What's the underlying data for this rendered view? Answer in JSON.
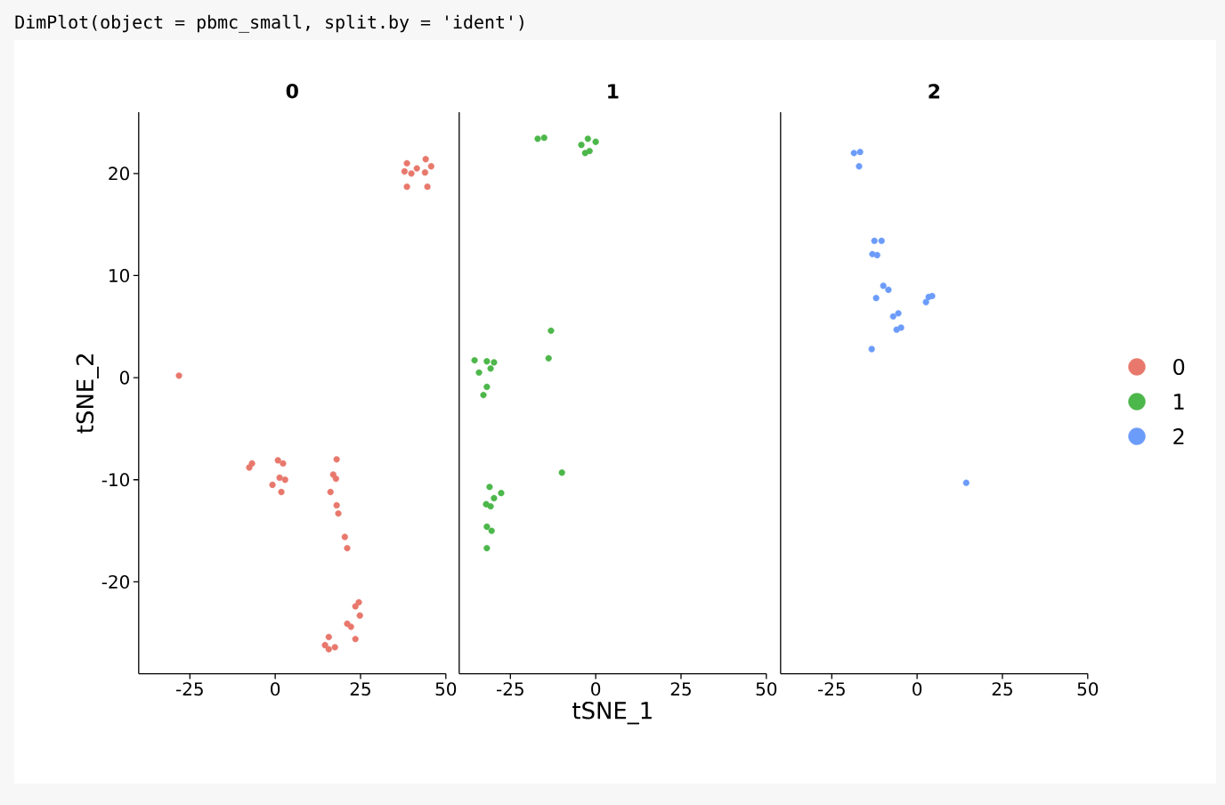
{
  "chart_data": [
    {
      "type": "scatter",
      "title": "0",
      "ylabel": "tSNE_2",
      "annotations": [
        "DimPlot(object = pbmc_small, split.by = 'ident')"
      ],
      "xlim": [
        -40,
        50
      ],
      "ylim": [
        -29,
        26
      ],
      "xticks": [
        -25,
        0,
        25,
        50
      ],
      "yticks": [
        -20,
        -10,
        0,
        10,
        20
      ],
      "marker": "circle",
      "series": [
        {
          "name": "0",
          "color": "#e8786c",
          "x": [
            -28.2,
            38.6,
            44.1,
            45.7,
            41.5,
            37.9,
            39.9,
            43.9,
            38.6,
            44.6,
            -6.8,
            -7.6,
            0.8,
            2.3,
            1.3,
            2.9,
            -0.8,
            1.8,
            18.0,
            17.0,
            17.8,
            16.2,
            18.0,
            18.5,
            20.4,
            21.1,
            24.5,
            23.5,
            24.8,
            21.1,
            22.2,
            23.5,
            15.7,
            14.6,
            15.7,
            17.5
          ],
          "values": [
            0.2,
            21.0,
            21.4,
            20.7,
            20.5,
            20.2,
            20.0,
            20.1,
            18.7,
            18.7,
            -8.4,
            -8.8,
            -8.1,
            -8.4,
            -9.8,
            -10.0,
            -10.5,
            -11.2,
            -8.0,
            -9.5,
            -9.9,
            -11.2,
            -12.5,
            -13.3,
            -15.6,
            -16.7,
            -22.0,
            -22.4,
            -23.3,
            -24.1,
            -24.4,
            -25.6,
            -25.4,
            -26.2,
            -26.6,
            -26.4
          ]
        }
      ]
    },
    {
      "type": "scatter",
      "title": "1",
      "xlabel": "tSNE_1",
      "xlim": [
        -40,
        50
      ],
      "ylim": [
        -29,
        26
      ],
      "xticks": [
        -25,
        0,
        25,
        50
      ],
      "tick_labels": "x",
      "marker": "circle",
      "series": [
        {
          "name": "1",
          "color": "#4cb74a",
          "x": [
            -17.0,
            -15.1,
            -2.3,
            0.0,
            -4.2,
            -3.1,
            -1.8,
            -13.1,
            -13.8,
            -35.5,
            -31.9,
            -29.8,
            -30.8,
            -34.2,
            -31.9,
            -32.9,
            -9.9,
            -31.1,
            -27.7,
            -29.8,
            -32.1,
            -30.8,
            -31.9,
            -30.5,
            -31.9
          ],
          "values": [
            23.4,
            23.5,
            23.4,
            23.1,
            22.8,
            22.0,
            22.2,
            4.6,
            1.9,
            1.7,
            1.6,
            1.5,
            0.9,
            0.5,
            -0.9,
            -1.7,
            -9.3,
            -10.7,
            -11.3,
            -11.8,
            -12.4,
            -12.6,
            -14.6,
            -15.0,
            -16.7
          ]
        }
      ]
    },
    {
      "type": "scatter",
      "title": "2",
      "xlim": [
        -40,
        50
      ],
      "ylim": [
        -29,
        26
      ],
      "xticks": [
        -25,
        0,
        25,
        50
      ],
      "tick_labels": "x",
      "marker": "circle",
      "legend": "right",
      "series": [
        {
          "name": "2",
          "color": "#6c9cfa",
          "x": [
            -18.5,
            -16.7,
            -17.0,
            -12.5,
            -10.4,
            -13.1,
            -11.7,
            -9.9,
            -8.4,
            -12.0,
            2.6,
            3.4,
            4.4,
            -7.0,
            -5.5,
            -6.0,
            -4.7,
            -13.3,
            14.4
          ],
          "values": [
            22.0,
            22.1,
            20.7,
            13.4,
            13.4,
            12.1,
            12.0,
            9.0,
            8.6,
            7.8,
            7.4,
            7.9,
            8.0,
            6.0,
            6.3,
            4.7,
            4.9,
            2.8,
            -10.3
          ]
        }
      ]
    }
  ]
}
